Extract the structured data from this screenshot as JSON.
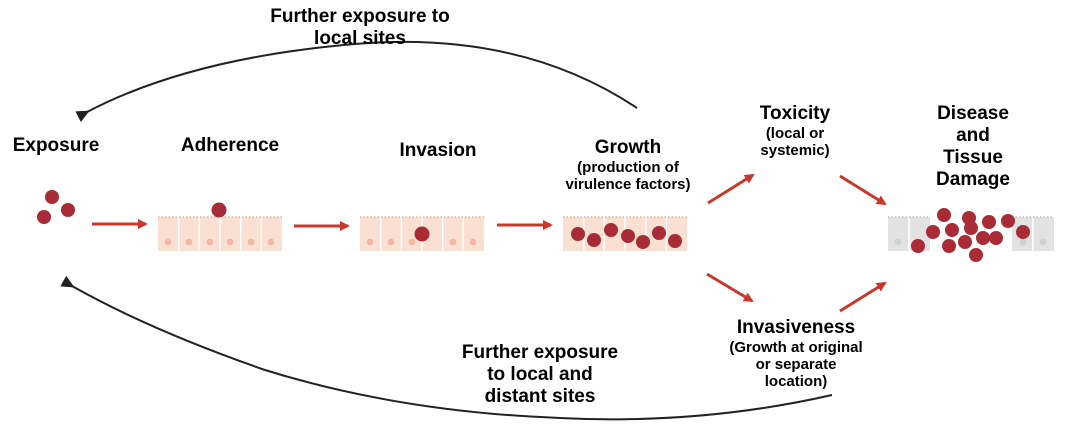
{
  "stages": {
    "exposure": "Exposure",
    "adherence": "Adherence",
    "invasion": "Invasion",
    "growth": "Growth",
    "growth_sub": [
      "(production of",
      "virulence factors)"
    ],
    "toxicity": "Toxicity",
    "toxicity_sub": [
      "(local or",
      "systemic)"
    ],
    "disease": [
      "Disease",
      "and",
      "Tissue",
      "Damage"
    ],
    "invasiveness": "Invasiveness",
    "invasiveness_sub": [
      "(Growth at original",
      "or separate",
      "location)"
    ]
  },
  "feedback": {
    "local": [
      "Further exposure to",
      "local sites"
    ],
    "distant": [
      "Further exposure",
      "to local and",
      "distant sites"
    ]
  },
  "colors": {
    "arrow_red": "#c8392b",
    "bacteria": "#a82b35",
    "tissue": "#f9e0d3",
    "tissue_line": "#f2c2ab",
    "nucleus": "#f1b9a3",
    "dead_tissue": "#e2e2e2",
    "curve": "#222222"
  }
}
